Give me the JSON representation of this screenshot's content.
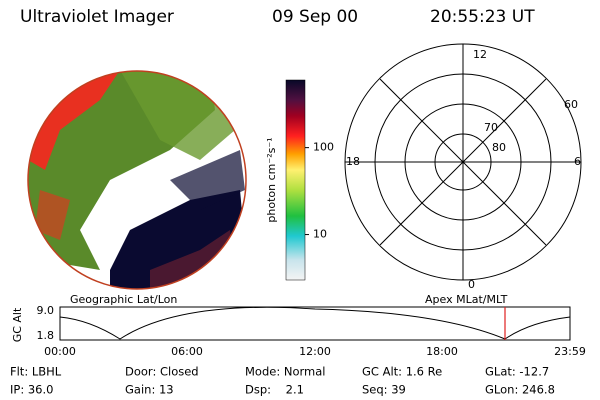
{
  "header": {
    "title": "Ultraviolet Imager",
    "date": "09 Sep 00",
    "time": "20:55:23 UT"
  },
  "colorbar": {
    "label": "photon cm⁻²s⁻¹",
    "log": true,
    "range": [
      3,
      600
    ],
    "ticks": [
      10,
      100
    ]
  },
  "polar": {
    "mlt": [
      "12",
      "18",
      "6",
      "0"
    ],
    "mlat": [
      "60",
      "70",
      "80"
    ]
  },
  "timeline": {
    "left_title": "Geographic Lat/Lon",
    "right_title": "Apex MLat/MLT",
    "axis_label": "GC Alt",
    "ytick_labels": [
      "9.0",
      "1.8"
    ],
    "times": [
      "00:00",
      "06:00",
      "12:00",
      "18:00",
      "23:59"
    ]
  },
  "footer": {
    "row1": [
      "Flt: LBHL",
      "Door: Closed",
      "Mode: Normal",
      "GC Alt: 1.6 Re",
      "GLat: -12.7"
    ],
    "row2": [
      "IP: 36.0",
      "Gain: 13",
      "Dsp:    2.1",
      "Seq: 39",
      "GLon: 246.8"
    ]
  }
}
